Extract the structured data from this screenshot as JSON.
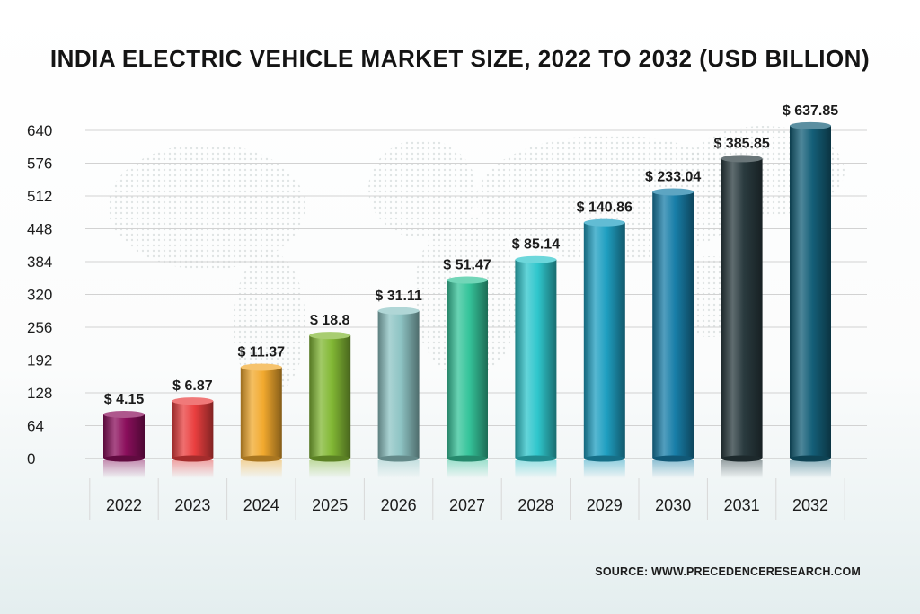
{
  "chart_data": {
    "type": "bar",
    "title": "INDIA ELECTRIC VEHICLE MARKET SIZE, 2022 TO 2032 (USD BILLION)",
    "categories": [
      "2022",
      "2023",
      "2024",
      "2025",
      "2026",
      "2027",
      "2028",
      "2029",
      "2030",
      "2031",
      "2032"
    ],
    "values": [
      4.15,
      6.87,
      11.37,
      18.8,
      31.11,
      51.47,
      85.14,
      140.86,
      233.04,
      385.85,
      637.85
    ],
    "value_labels": [
      "$ 4.15",
      "$ 6.87",
      "$ 11.37",
      "$ 18.8",
      "$ 31.11",
      "$ 51.47",
      "$ 85.14",
      "$ 140.86",
      "$ 233.04",
      "$ 385.85",
      "$ 637.85"
    ],
    "bar_heights_on_axis": [
      86,
      112,
      178,
      240,
      288,
      348,
      388,
      460,
      520,
      585,
      649
    ],
    "yticks": [
      0,
      64,
      128,
      192,
      256,
      320,
      384,
      448,
      512,
      576,
      640
    ],
    "ylim": [
      0,
      640
    ],
    "xlabel": "",
    "ylabel": "",
    "grid": true,
    "colors": [
      "#8b0f5c",
      "#ea3f3f",
      "#f2a92e",
      "#82b834",
      "#8ec4c4",
      "#35c49a",
      "#2fc6cc",
      "#1f9fc1",
      "#187ea8",
      "#2a3b3f",
      "#145f78"
    ],
    "source": "SOURCE: WWW.PRECEDENCERESEARCH.COM"
  }
}
